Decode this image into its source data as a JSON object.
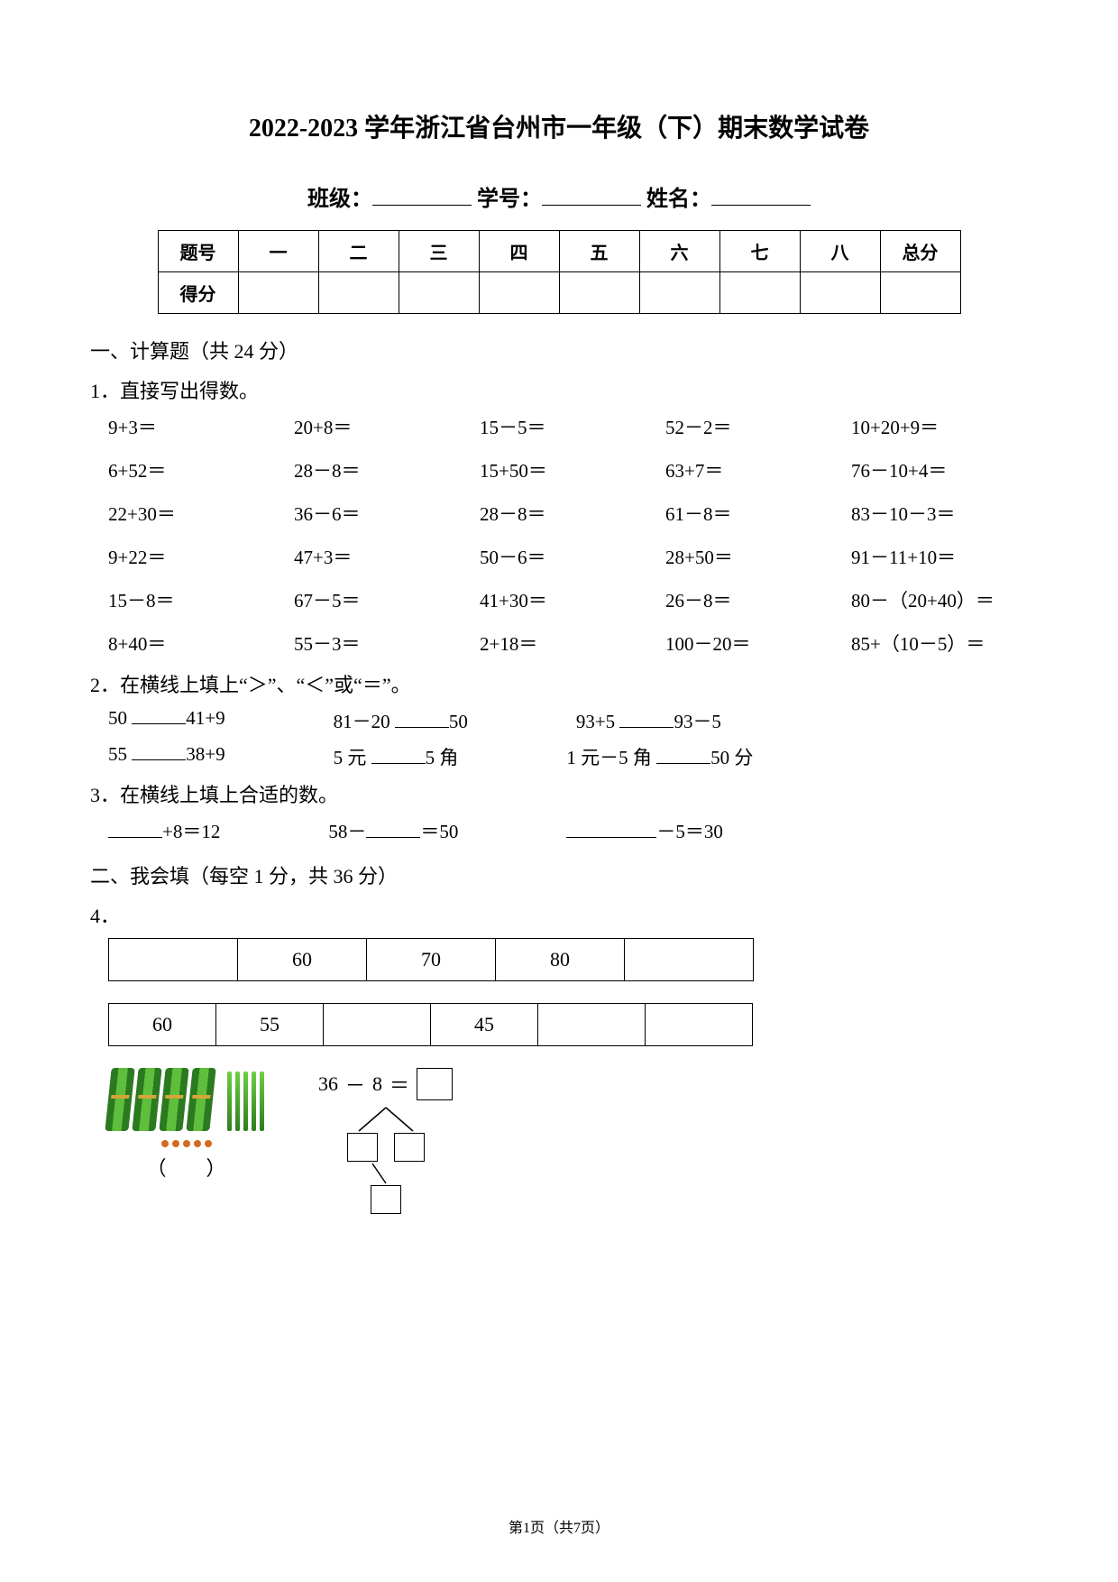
{
  "title": "2022-2023 学年浙江省台州市一年级（下）期末数学试卷",
  "info": {
    "class": "班级：",
    "id": "学号：",
    "name": "姓名："
  },
  "score_table": {
    "row1": [
      "题号",
      "一",
      "二",
      "三",
      "四",
      "五",
      "六",
      "七",
      "八",
      "总分"
    ],
    "row2_label": "得分"
  },
  "section1": {
    "header": "一、计算题（共 24 分）",
    "q1": {
      "label": "1．直接写出得数。",
      "items": [
        "9+3＝",
        "20+8＝",
        "15－5＝",
        "52－2＝",
        "10+20+9＝",
        "6+52＝",
        "28－8＝",
        "15+50＝",
        "63+7＝",
        "76－10+4＝",
        "22+30＝",
        "36－6＝",
        "28－8＝",
        "61－8＝",
        "83－10－3＝",
        "9+22＝",
        "47+3＝",
        "50－6＝",
        "28+50＝",
        "91－11+10＝",
        "15－8＝",
        "67－5＝",
        "41+30＝",
        "26－8＝",
        "80－（20+40）＝",
        "8+40＝",
        "55－3＝",
        "2+18＝",
        "100－20＝",
        "85+（10－5）＝"
      ]
    },
    "q2": {
      "label": "2．在横线上填上“＞”、“＜”或“＝”。",
      "rows": [
        [
          {
            "l": "50",
            "r": "41+9"
          },
          {
            "l": "81－20",
            "r": "50"
          },
          {
            "l": "93+5",
            "r": "93－5"
          }
        ],
        [
          {
            "l": "55",
            "r": "38+9"
          },
          {
            "l": "5 元",
            "r": "5 角"
          },
          {
            "l": "1 元－5 角",
            "r": "50 分"
          }
        ]
      ]
    },
    "q3": {
      "label": "3．在横线上填上合适的数。",
      "items": [
        {
          "pre": "",
          "suf": "+8＝12"
        },
        {
          "pre": "58－",
          "suf": "＝50"
        },
        {
          "pre": "",
          "suf": "－5＝30"
        }
      ]
    }
  },
  "section2": {
    "header": "二、我会填（每空 1 分，共 36 分）",
    "q4": {
      "label": "4．",
      "seq1": [
        "",
        "60",
        "70",
        "80",
        ""
      ],
      "seq2": [
        "60",
        "55",
        "",
        "45",
        "",
        ""
      ],
      "paren": "（　　）",
      "eq": {
        "lhs": "36",
        "minus": "－",
        "rhs": "8",
        "equals": "＝"
      }
    }
  },
  "footer": "第1页（共7页）"
}
